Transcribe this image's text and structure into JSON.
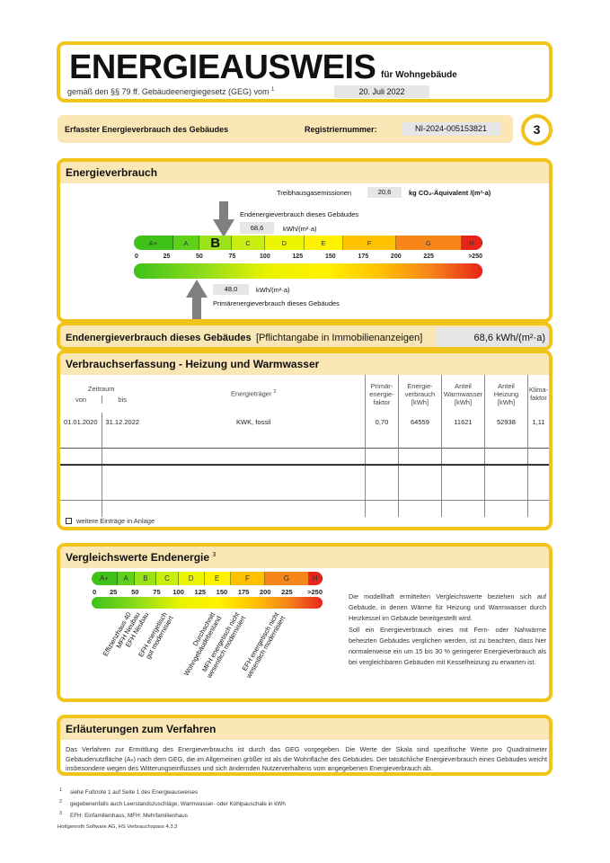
{
  "header": {
    "title": "ENERGIEAUSWEIS",
    "subtitle": "für Wohngebäude",
    "law_text": "gemäß den §§ 79 ff. Gebäudeenergiegesetz (GEG) vom",
    "law_footnote": "1",
    "law_date": "20. Juli 2022"
  },
  "page_bar": {
    "label": "Erfasster Energieverbrauch des Gebäudes",
    "reg_label": "Registriernummer:",
    "reg_value": "NI-2024-005153821",
    "page_number": "3"
  },
  "energy": {
    "title": "Energieverbrauch",
    "ghg_label": "Treibhausgasemissionen",
    "ghg_value": "20,6",
    "ghg_unit": "kg CO₂-Äquivalent /(m²·a)",
    "end_label": "Endenergieverbrauch dieses Gebäudes",
    "end_value": "68,6",
    "end_unit": "kWh/(m²·a)",
    "end_value_num": 68.6,
    "primary_value": "48,0",
    "primary_unit": "kWh/(m²·a)",
    "primary_label": "Primärenergieverbrauch dieses Gebäudes",
    "primary_value_num": 48.0,
    "current_class": "B",
    "classes": [
      {
        "label": "A+",
        "from": 0,
        "to": 30
      },
      {
        "label": "A",
        "from": 30,
        "to": 50
      },
      {
        "label": "B",
        "from": 50,
        "to": 75
      },
      {
        "label": "C",
        "from": 75,
        "to": 100
      },
      {
        "label": "D",
        "from": 100,
        "to": 130
      },
      {
        "label": "E",
        "from": 130,
        "to": 160
      },
      {
        "label": "F",
        "from": 160,
        "to": 200
      },
      {
        "label": "G",
        "from": 200,
        "to": 250
      },
      {
        "label": "H",
        "from": 250,
        "to": 265
      }
    ],
    "ticks": [
      "0",
      "25",
      "50",
      "75",
      "100",
      "125",
      "150",
      "175",
      "200",
      "225",
      ">250"
    ]
  },
  "summary": {
    "label": "Endenergieverbrauch dieses Gebäudes",
    "note": "[Pflichtangabe in Immobilienanzeigen]",
    "value": "68,6 kWh/(m²·a)"
  },
  "consumption": {
    "title": "Verbrauchserfassung - Heizung und Warmwasser",
    "headers": {
      "period": "Zeitraum",
      "from": "von",
      "to": "bis",
      "carrier": "Energieträger",
      "carrier_fn": "2",
      "pef": "Primär-\nenergie-\nfaktor",
      "consumption": "Energie-\nverbrauch\n[kWh]",
      "ww": "Anteil\nWarmwasser\n[kWh]",
      "heating": "Anteil\nHeizung\n[kWh]",
      "climate": "Klima-\nfaktor"
    },
    "rows": [
      {
        "from": "01.01.2020",
        "to": "31.12.2022",
        "carrier": "KWK, fossil",
        "pef": "0,70",
        "consumption": "64559",
        "ww": "11621",
        "heating": "52938",
        "climate": "1,11"
      }
    ],
    "more_label": "weitere Einträge in Anlage"
  },
  "comparison": {
    "title": "Vergleichswerte Endenergie",
    "title_fn": "3",
    "refs": [
      {
        "label": "Effizienzhaus 40",
        "value": 40
      },
      {
        "label": "MFH Neubau",
        "value": 50
      },
      {
        "label": "EFH Neubau",
        "value": 60
      },
      {
        "label": "EFH energetisch\ngut modernisiert",
        "value": 82
      },
      {
        "label": "Durchschnitt\nWohngebäudebestand",
        "value": 137
      },
      {
        "label": "MFH energetisch nicht\nwesentlich modernisiert",
        "value": 165
      },
      {
        "label": "EFH energetisch nicht\nwesentlich modernisiert",
        "value": 210
      }
    ],
    "text": "Die modellhaft ermittelten Vergleichswerte beziehen sich auf Gebäude, in denen Wärme für Heizung und Warmwasser durch Heizkessel im Gebäude bereitgestellt wird.\nSoll ein Energieverbrauch eines mit Fern- oder Nahwärme beheizten Gebäudes verglichen werden, ist zu beachten, dass hier normalerweise ein um 15 bis 30 % geringerer Energieverbrauch als bei vergleichbaren Gebäuden mit Kesselheizung zu erwarten ist."
  },
  "explanation": {
    "title": "Erläuterungen zum Verfahren",
    "text": "Das Verfahren zur Ermittlung des Energieverbrauchs ist durch das GEG vorgegeben. Die Werte der Skala sind spezifische Werte pro Quadratmeter Gebäudenutzfläche (Aₙ) nach dem GEG, die im Allgemeinen größer ist als die Wohnfläche des Gebäudes. Der tatsächliche Energieverbrauch eines Gebäudes weicht insbesondere wegen des Witterungseinflusses und sich ändernden Nutzerverhaltens vom angegebenen Energieverbrauch ab."
  },
  "footnotes": [
    {
      "n": "1",
      "text": "siehe Fußnote 1 auf Seite 1 des Energieausweises"
    },
    {
      "n": "2",
      "text": "gegebenenfalls auch Leerstandszuschläge, Warmwasser- oder Kühlpauschale in kWh"
    },
    {
      "n": "3",
      "text": "EFH: Einfamilienhaus, MFH: Mehrfamilienhaus"
    }
  ],
  "software": "Hottgenroth Software AG, HS Verbrauchspass 4.3.3",
  "colors": {
    "border": "#f0c419",
    "header_bg": "#fbe7b5",
    "field_bg": "#e6e6e6"
  }
}
